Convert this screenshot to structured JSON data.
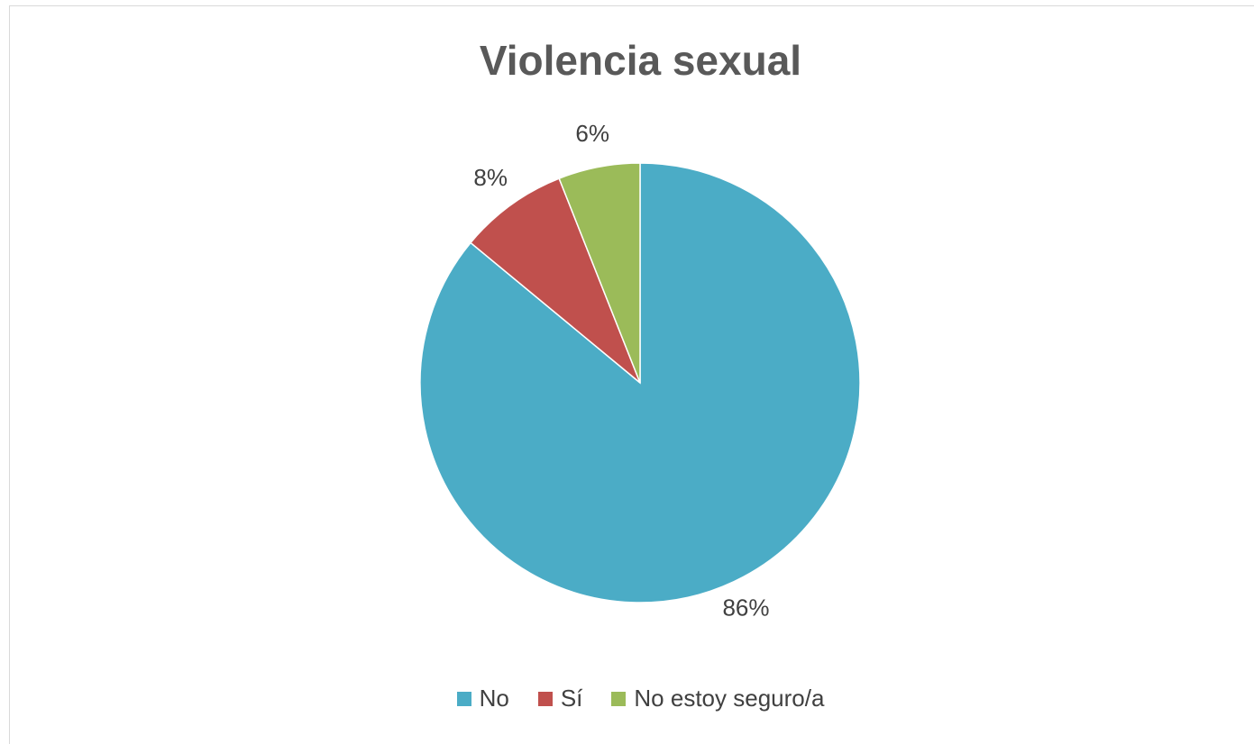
{
  "chart_data": {
    "type": "pie",
    "title": "Violencia sexual",
    "categories": [
      "No",
      "Sí",
      "No estoy seguro/a"
    ],
    "values": [
      86,
      8,
      6
    ],
    "value_labels": [
      "86%",
      "8%",
      "6%"
    ],
    "colors": [
      "#4BACC6",
      "#C0504D",
      "#9BBB59"
    ],
    "start_angle_deg": 0,
    "direction": "clockwise",
    "legend_position": "bottom"
  }
}
